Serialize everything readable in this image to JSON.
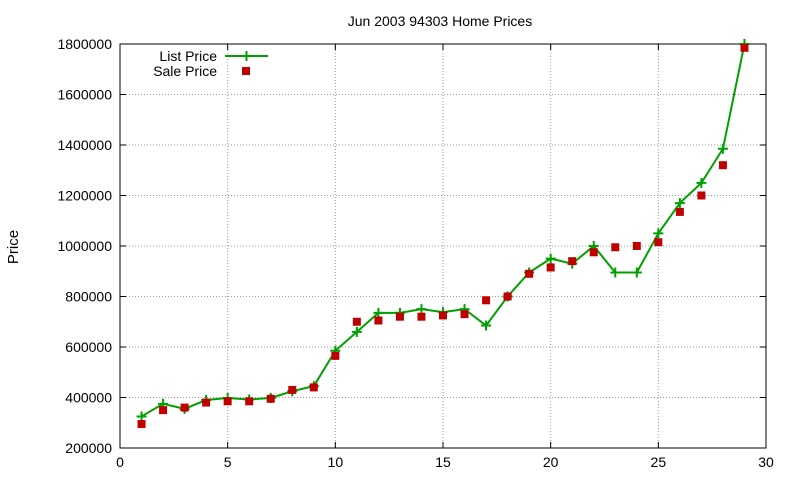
{
  "chart_data": {
    "type": "line",
    "title": "Jun 2003 94303 Home Prices",
    "xlabel": "",
    "ylabel": "Price",
    "xlim": [
      0,
      30
    ],
    "ylim": [
      200000,
      1800000
    ],
    "xticks": [
      0,
      5,
      10,
      15,
      20,
      25,
      30
    ],
    "yticks": [
      200000,
      400000,
      600000,
      800000,
      1000000,
      1200000,
      1400000,
      1600000,
      1800000
    ],
    "grid": true,
    "legend_position": "top-left",
    "series": [
      {
        "name": "List Price",
        "style": "line+cross",
        "color": "#00a000",
        "x": [
          1,
          2,
          3,
          4,
          5,
          6,
          7,
          8,
          9,
          10,
          11,
          12,
          13,
          14,
          15,
          16,
          17,
          18,
          19,
          20,
          21,
          22,
          23,
          24,
          25,
          26,
          27,
          28,
          29
        ],
        "values": [
          325000,
          375000,
          355000,
          390000,
          398000,
          392000,
          398000,
          425000,
          445000,
          585000,
          660000,
          735000,
          735000,
          750000,
          738000,
          750000,
          685000,
          800000,
          895000,
          950000,
          930000,
          1000000,
          895000,
          895000,
          1050000,
          1170000,
          1250000,
          1385000,
          1800000
        ]
      },
      {
        "name": "Sale Price",
        "style": "points",
        "color": "#c00000",
        "x": [
          1,
          2,
          3,
          4,
          5,
          6,
          7,
          8,
          9,
          10,
          11,
          12,
          13,
          14,
          15,
          16,
          17,
          18,
          19,
          20,
          21,
          22,
          23,
          24,
          25,
          26,
          27,
          28,
          29
        ],
        "values": [
          295000,
          350000,
          360000,
          380000,
          385000,
          385000,
          395000,
          430000,
          440000,
          565000,
          700000,
          705000,
          720000,
          720000,
          725000,
          730000,
          785000,
          800000,
          890000,
          915000,
          940000,
          975000,
          995000,
          1000000,
          1015000,
          1135000,
          1200000,
          1320000,
          1785000
        ]
      }
    ]
  }
}
